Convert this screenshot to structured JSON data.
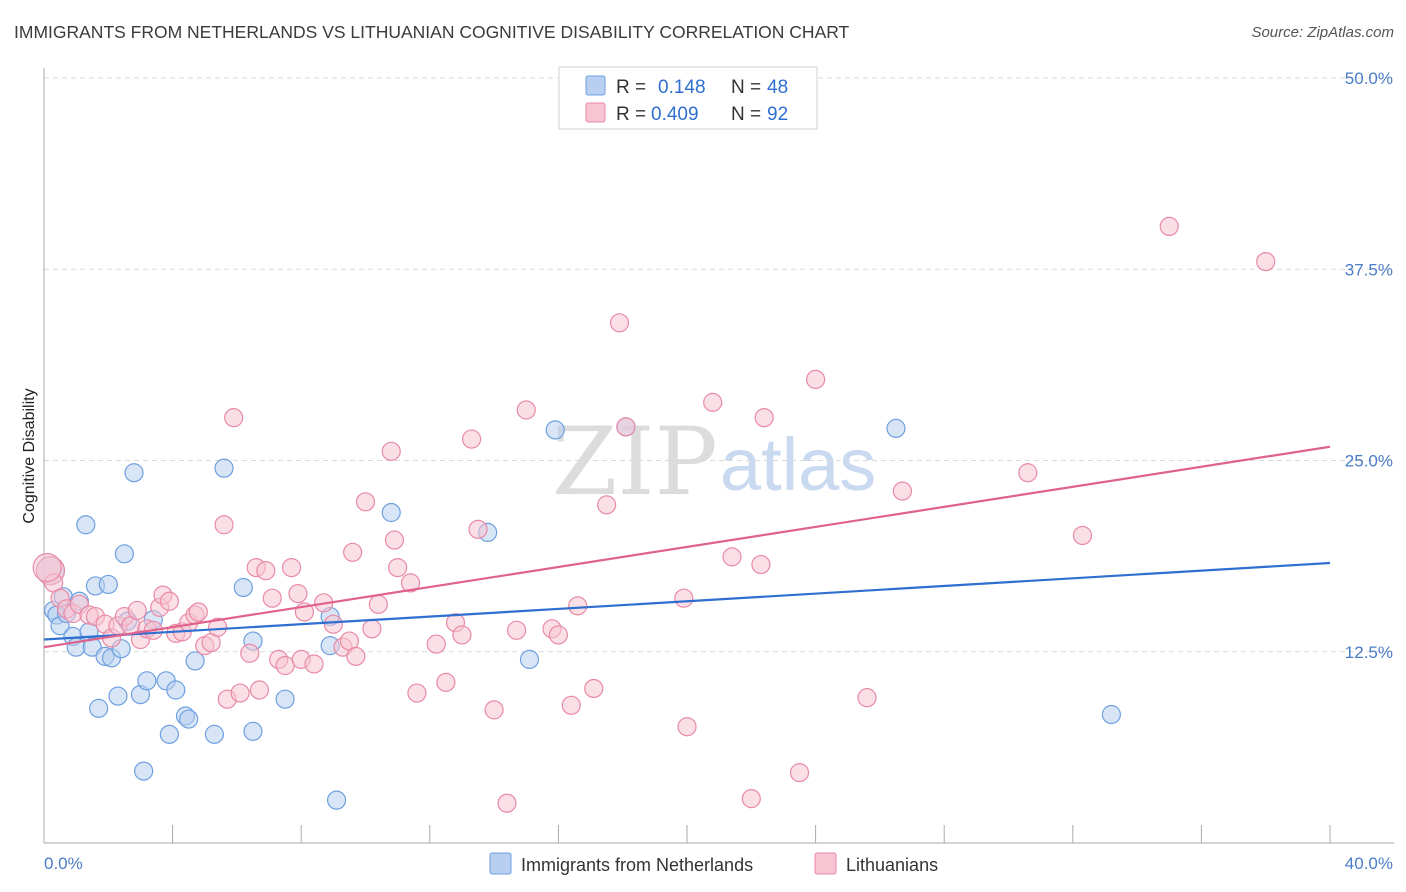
{
  "title": "IMMIGRANTS FROM NETHERLANDS VS LITHUANIAN COGNITIVE DISABILITY CORRELATION CHART",
  "source": "Source: ZipAtlas.com",
  "watermark": {
    "part1": "ZIP",
    "part2": "atlas"
  },
  "colors": {
    "blue": "#6fa0df",
    "blue_fill": "#b7cff0",
    "blue_line": "#2f6fd0",
    "pink": "#e88aa6",
    "pink_fill": "#f6c4d3",
    "pink_line": "#e0628c",
    "grid": "#d9d9d9",
    "tick_text": "#4a7cc7"
  },
  "legend": {
    "rows": [
      {
        "r_label": "R =",
        "r_value": "0.148",
        "n_label": "N =",
        "n_value": "48"
      },
      {
        "r_label": "R =",
        "r_value": "0.409",
        "n_label": "N =",
        "n_value": "92"
      }
    ]
  },
  "chart_data": {
    "type": "scatter",
    "title": "IMMIGRANTS FROM NETHERLANDS VS LITHUANIAN COGNITIVE DISABILITY CORRELATION CHART",
    "xlabel": "",
    "ylabel": "Cognitive Disability",
    "xlim": [
      0,
      40
    ],
    "ylim": [
      0,
      50
    ],
    "x_tick_labels": [
      "0.0%",
      "40.0%"
    ],
    "y_ticks": [
      12.5,
      25.0,
      37.5,
      50.0
    ],
    "y_tick_labels": [
      "12.5%",
      "25.0%",
      "37.5%",
      "50.0%"
    ],
    "grid": true,
    "legend_position": "top-center",
    "series": [
      {
        "name": "Immigrants from Netherlands",
        "trend": {
          "x0": 0,
          "y0": 13.3,
          "x1": 40,
          "y1": 18.3
        },
        "points": [
          [
            0.2,
            17.8
          ],
          [
            0.3,
            15.2
          ],
          [
            0.4,
            14.9
          ],
          [
            0.5,
            14.2
          ],
          [
            0.6,
            16.1
          ],
          [
            0.7,
            15.0
          ],
          [
            0.9,
            13.5
          ],
          [
            1.0,
            12.8
          ],
          [
            1.1,
            15.8
          ],
          [
            1.3,
            20.8
          ],
          [
            1.4,
            13.8
          ],
          [
            1.5,
            12.8
          ],
          [
            1.6,
            16.8
          ],
          [
            1.7,
            8.8
          ],
          [
            1.9,
            12.2
          ],
          [
            2.0,
            16.9
          ],
          [
            2.1,
            12.1
          ],
          [
            2.3,
            9.6
          ],
          [
            2.4,
            12.7
          ],
          [
            2.5,
            18.9
          ],
          [
            2.6,
            14.5
          ],
          [
            2.8,
            24.2
          ],
          [
            3.0,
            9.7
          ],
          [
            3.1,
            4.7
          ],
          [
            3.2,
            10.6
          ],
          [
            3.4,
            14.6
          ],
          [
            3.8,
            10.6
          ],
          [
            3.9,
            7.1
          ],
          [
            4.1,
            10.0
          ],
          [
            4.4,
            8.3
          ],
          [
            4.5,
            8.1
          ],
          [
            4.7,
            11.9
          ],
          [
            5.3,
            7.1
          ],
          [
            5.6,
            24.5
          ],
          [
            6.2,
            16.7
          ],
          [
            6.5,
            13.2
          ],
          [
            6.5,
            7.3
          ],
          [
            7.5,
            9.4
          ],
          [
            8.9,
            12.9
          ],
          [
            8.9,
            14.8
          ],
          [
            9.1,
            2.8
          ],
          [
            10.8,
            21.6
          ],
          [
            13.8,
            20.3
          ],
          [
            15.1,
            12.0
          ],
          [
            15.9,
            27.0
          ],
          [
            18.1,
            27.2
          ],
          [
            26.5,
            27.1
          ],
          [
            33.2,
            8.4
          ]
        ]
      },
      {
        "name": "Lithuanians",
        "trend": {
          "x0": 0,
          "y0": 12.8,
          "x1": 40,
          "y1": 25.9
        },
        "points": [
          [
            0.2,
            17.8
          ],
          [
            0.3,
            17.0
          ],
          [
            0.5,
            16.0
          ],
          [
            0.7,
            15.3
          ],
          [
            0.9,
            15.0
          ],
          [
            1.1,
            15.6
          ],
          [
            1.4,
            14.9
          ],
          [
            1.6,
            14.8
          ],
          [
            1.9,
            14.3
          ],
          [
            2.1,
            13.4
          ],
          [
            2.3,
            14.2
          ],
          [
            2.5,
            14.8
          ],
          [
            2.7,
            14.2
          ],
          [
            2.9,
            15.2
          ],
          [
            3.0,
            13.3
          ],
          [
            3.2,
            14.0
          ],
          [
            3.4,
            13.9
          ],
          [
            3.6,
            15.4
          ],
          [
            3.7,
            16.2
          ],
          [
            3.9,
            15.8
          ],
          [
            4.1,
            13.7
          ],
          [
            4.3,
            13.8
          ],
          [
            4.5,
            14.4
          ],
          [
            4.7,
            14.9
          ],
          [
            4.8,
            15.1
          ],
          [
            5.0,
            12.9
          ],
          [
            5.2,
            13.1
          ],
          [
            5.4,
            14.1
          ],
          [
            5.6,
            20.8
          ],
          [
            5.7,
            9.4
          ],
          [
            5.9,
            27.8
          ],
          [
            6.1,
            9.8
          ],
          [
            6.4,
            12.4
          ],
          [
            6.6,
            18.0
          ],
          [
            6.7,
            10.0
          ],
          [
            6.9,
            17.8
          ],
          [
            7.1,
            16.0
          ],
          [
            7.3,
            12.0
          ],
          [
            7.5,
            11.6
          ],
          [
            7.7,
            18.0
          ],
          [
            7.9,
            16.3
          ],
          [
            8.0,
            12.0
          ],
          [
            8.1,
            15.1
          ],
          [
            8.4,
            11.7
          ],
          [
            8.7,
            15.7
          ],
          [
            9.0,
            14.3
          ],
          [
            9.3,
            12.8
          ],
          [
            9.5,
            13.2
          ],
          [
            9.6,
            19.0
          ],
          [
            9.7,
            12.2
          ],
          [
            10.0,
            22.3
          ],
          [
            10.2,
            14.0
          ],
          [
            10.4,
            15.6
          ],
          [
            10.8,
            25.6
          ],
          [
            10.9,
            19.8
          ],
          [
            11.0,
            18.0
          ],
          [
            11.4,
            17.0
          ],
          [
            11.6,
            9.8
          ],
          [
            12.2,
            13.0
          ],
          [
            12.5,
            10.5
          ],
          [
            12.8,
            14.4
          ],
          [
            13.0,
            13.6
          ],
          [
            13.3,
            26.4
          ],
          [
            13.5,
            20.5
          ],
          [
            14.0,
            8.7
          ],
          [
            14.4,
            2.6
          ],
          [
            14.7,
            13.9
          ],
          [
            15.0,
            28.3
          ],
          [
            15.8,
            14.0
          ],
          [
            16.0,
            13.6
          ],
          [
            16.4,
            9.0
          ],
          [
            16.6,
            15.5
          ],
          [
            17.1,
            10.1
          ],
          [
            17.5,
            22.1
          ],
          [
            17.9,
            34.0
          ],
          [
            18.1,
            27.2
          ],
          [
            19.9,
            16.0
          ],
          [
            20.0,
            7.6
          ],
          [
            20.8,
            28.8
          ],
          [
            21.4,
            18.7
          ],
          [
            22.0,
            2.9
          ],
          [
            22.3,
            18.2
          ],
          [
            22.4,
            27.8
          ],
          [
            23.5,
            4.6
          ],
          [
            24.0,
            30.3
          ],
          [
            25.6,
            9.5
          ],
          [
            26.7,
            23.0
          ],
          [
            30.6,
            24.2
          ],
          [
            32.3,
            20.1
          ],
          [
            35.0,
            40.3
          ],
          [
            38.0,
            38.0
          ],
          [
            0.1,
            18.0
          ]
        ]
      }
    ]
  }
}
